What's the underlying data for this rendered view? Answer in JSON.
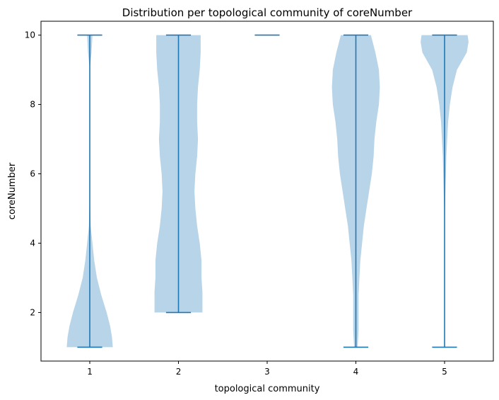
{
  "chart_data": {
    "type": "violin",
    "title": "Distribution per topological community of coreNumber",
    "xlabel": "topological community",
    "ylabel": "coreNumber",
    "categories": [
      "1",
      "2",
      "3",
      "4",
      "5"
    ],
    "x_ticks": [
      "1",
      "2",
      "3",
      "4",
      "5"
    ],
    "y_ticks": [
      "2",
      "4",
      "6",
      "8",
      "10"
    ],
    "ylim": [
      0.6,
      10.4
    ],
    "grid": false,
    "violins": [
      {
        "category": "1",
        "min": 1,
        "max": 10,
        "profile": [
          [
            1.0,
            0.26
          ],
          [
            1.3,
            0.25
          ],
          [
            1.6,
            0.23
          ],
          [
            2.0,
            0.19
          ],
          [
            2.5,
            0.13
          ],
          [
            3.0,
            0.08
          ],
          [
            3.5,
            0.05
          ],
          [
            4.0,
            0.03
          ],
          [
            4.5,
            0.01
          ],
          [
            5.0,
            0.005
          ],
          [
            6.0,
            0.0
          ],
          [
            8.0,
            0.0
          ],
          [
            9.0,
            0.0
          ],
          [
            9.5,
            0.02
          ],
          [
            10.0,
            0.03
          ]
        ]
      },
      {
        "category": "2",
        "min": 2,
        "max": 10,
        "profile": [
          [
            2.0,
            0.27
          ],
          [
            2.3,
            0.27
          ],
          [
            2.6,
            0.27
          ],
          [
            3.0,
            0.26
          ],
          [
            3.5,
            0.26
          ],
          [
            4.0,
            0.24
          ],
          [
            4.5,
            0.21
          ],
          [
            5.0,
            0.19
          ],
          [
            5.5,
            0.18
          ],
          [
            6.0,
            0.19
          ],
          [
            6.5,
            0.21
          ],
          [
            7.0,
            0.22
          ],
          [
            7.5,
            0.21
          ],
          [
            8.0,
            0.21
          ],
          [
            8.5,
            0.22
          ],
          [
            9.0,
            0.24
          ],
          [
            9.5,
            0.25
          ],
          [
            10.0,
            0.25
          ]
        ]
      },
      {
        "category": "3",
        "min": 10,
        "max": 10,
        "profile": []
      },
      {
        "category": "4",
        "min": 1,
        "max": 10,
        "profile": [
          [
            1.0,
            0.02
          ],
          [
            1.5,
            0.03
          ],
          [
            2.0,
            0.03
          ],
          [
            2.5,
            0.03
          ],
          [
            3.0,
            0.04
          ],
          [
            3.5,
            0.05
          ],
          [
            4.0,
            0.07
          ],
          [
            4.5,
            0.09
          ],
          [
            5.0,
            0.12
          ],
          [
            5.5,
            0.15
          ],
          [
            6.0,
            0.18
          ],
          [
            6.5,
            0.2
          ],
          [
            7.0,
            0.21
          ],
          [
            7.5,
            0.23
          ],
          [
            8.0,
            0.26
          ],
          [
            8.5,
            0.27
          ],
          [
            9.0,
            0.26
          ],
          [
            9.5,
            0.22
          ],
          [
            10.0,
            0.17
          ]
        ]
      },
      {
        "category": "5",
        "min": 1,
        "max": 10,
        "profile": [
          [
            1.0,
            0.0
          ],
          [
            2.0,
            0.0
          ],
          [
            3.0,
            0.0
          ],
          [
            4.0,
            0.0
          ],
          [
            4.5,
            0.003
          ],
          [
            5.0,
            0.005
          ],
          [
            5.5,
            0.01
          ],
          [
            6.0,
            0.015
          ],
          [
            6.5,
            0.02
          ],
          [
            7.0,
            0.03
          ],
          [
            7.5,
            0.04
          ],
          [
            8.0,
            0.06
          ],
          [
            8.5,
            0.09
          ],
          [
            9.0,
            0.14
          ],
          [
            9.5,
            0.25
          ],
          [
            9.8,
            0.27
          ],
          [
            10.0,
            0.26
          ]
        ]
      }
    ],
    "colors": {
      "body": "#b8d4e8",
      "lines": "#1f77b4"
    }
  }
}
